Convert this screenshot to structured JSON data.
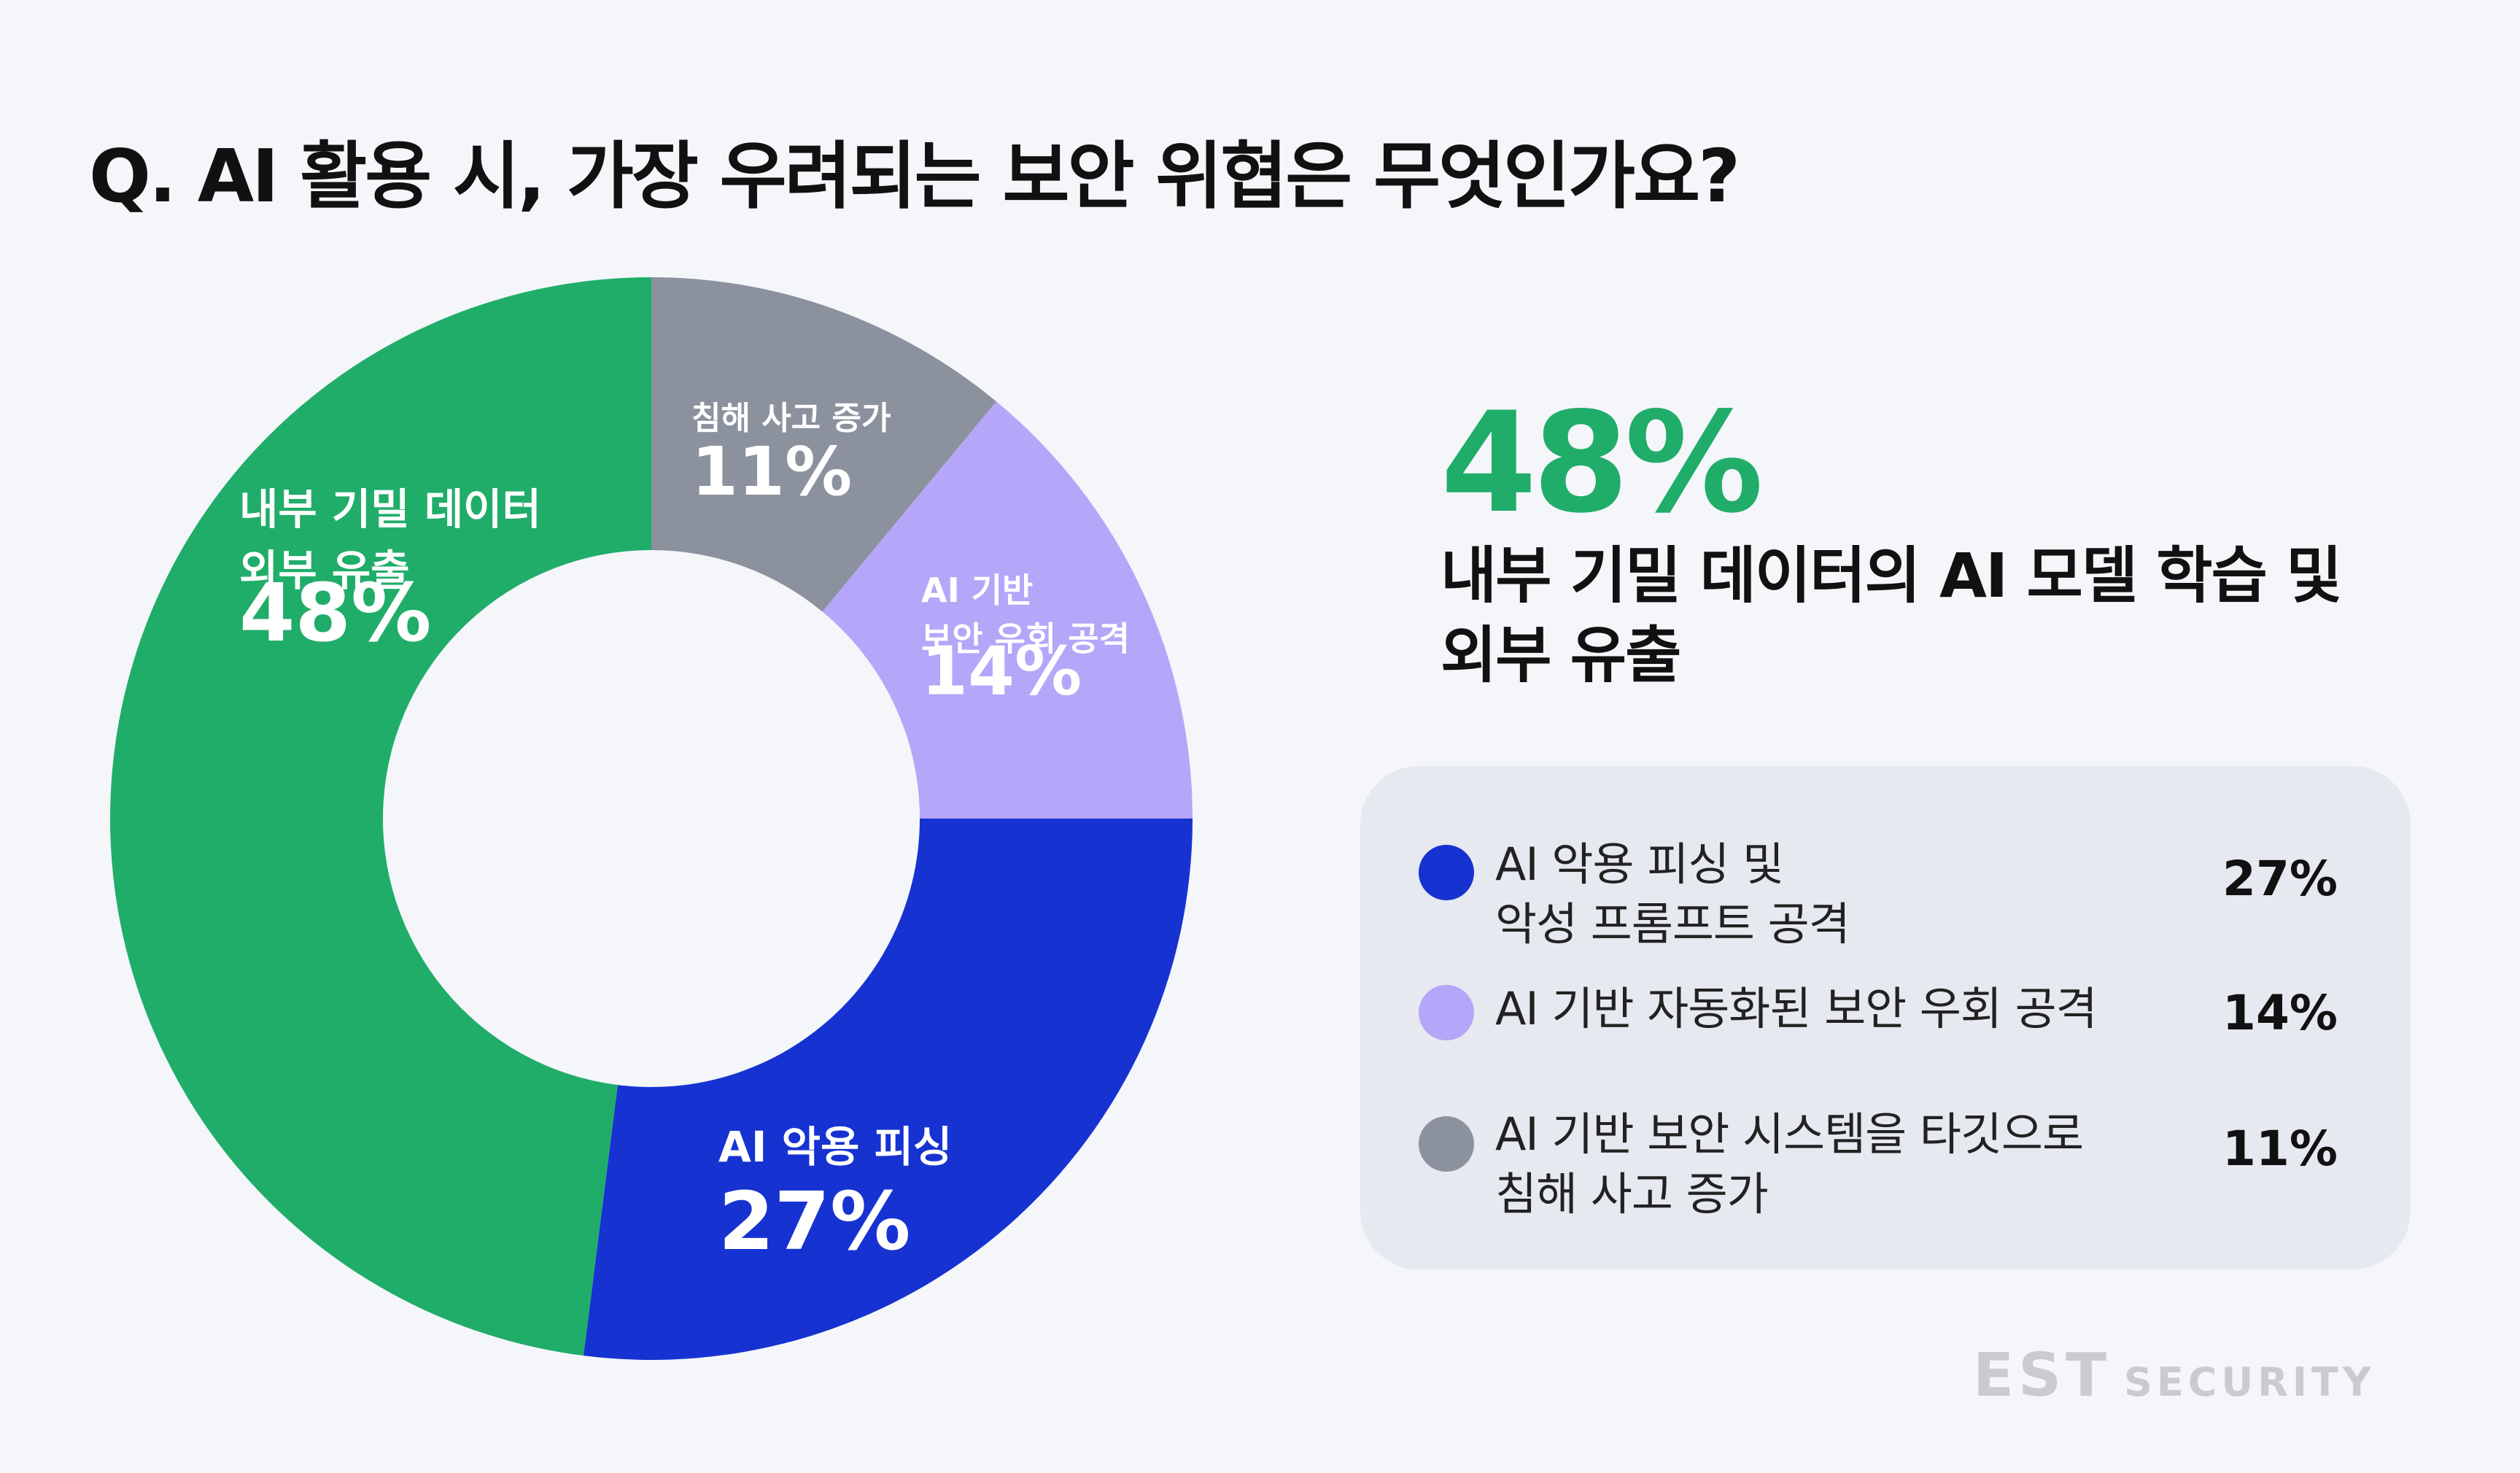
{
  "title": "Q. AI 활용 시, 가장 우려되는 보안 위협은 무엇인가요?",
  "chart_data": {
    "type": "pie",
    "donut": true,
    "title": "Q. AI 활용 시, 가장 우려되는 보안 위협은 무엇인가요?",
    "slices": [
      {
        "label_lines": [
          "침해 사고 증가"
        ],
        "value": 11,
        "display": "11%",
        "color": "#8b929e"
      },
      {
        "label_lines": [
          "AI 기반",
          "보안 우회 공격"
        ],
        "value": 14,
        "display": "14%",
        "color": "#b5a6f9"
      },
      {
        "label_lines": [
          "AI 악용 피싱"
        ],
        "value": 27,
        "display": "27%",
        "color": "#1633d1"
      },
      {
        "label_lines": [
          "내부 기밀 데이터",
          "외부 유출"
        ],
        "value": 48,
        "display": "48%",
        "color": "#20ad6a"
      }
    ]
  },
  "highlight": {
    "value": "48%",
    "description": "내부 기밀 데이터의 AI 모델 학습 및 외부 유출"
  },
  "legend": [
    {
      "line1": "AI 악용 피싱 및",
      "line2": "악성 프롬프트 공격",
      "value": "27%",
      "color": "#1633d1"
    },
    {
      "line1": "AI 기반 자동화된 보안 우회 공격",
      "line2": "",
      "value": "14%",
      "color": "#b5a6f9"
    },
    {
      "line1": "AI 기반 보안 시스템을 타깃으로",
      "line2": "침해 사고 증가",
      "value": "11%",
      "color": "#8b929e"
    }
  ],
  "brand": {
    "main": "EST",
    "sub": "SECURITY"
  }
}
